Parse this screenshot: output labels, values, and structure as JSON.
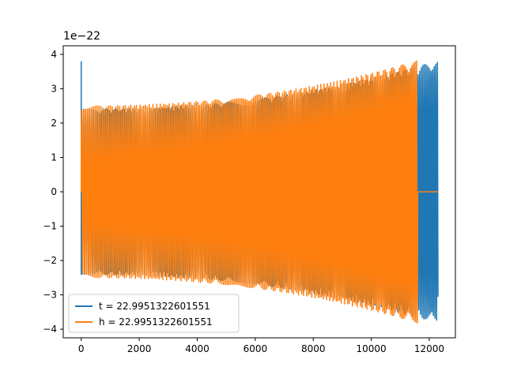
{
  "chart_data": {
    "type": "line",
    "title": "",
    "xlabel": "",
    "ylabel": "",
    "y_scale_label": "1e−22",
    "xlim": [
      -620,
      12900
    ],
    "ylim": [
      -4.25,
      4.25
    ],
    "x_ticks": [
      0,
      2000,
      4000,
      6000,
      8000,
      10000,
      12000
    ],
    "y_ticks": [
      -4,
      -3,
      -2,
      -1,
      0,
      1,
      2,
      3,
      4
    ],
    "x_tick_labels": [
      "0",
      "2000",
      "4000",
      "6000",
      "8000",
      "10000",
      "12000"
    ],
    "y_tick_labels": [
      "−4",
      "−3",
      "−2",
      "−1",
      "0",
      "1",
      "2",
      "3",
      "4"
    ],
    "grid": false,
    "legend_position": "lower-left",
    "series": [
      {
        "name": "t = 22.9951322601551",
        "color": "#1f77b4",
        "x_start": 0,
        "x_end": 12300,
        "initial_spike": 3.8,
        "amplitude_start": 2.4,
        "amplitude_end": 3.82,
        "approx_cycles": 180
      },
      {
        "name": "h = 22.9951322601551",
        "color": "#ff7f0e",
        "x_start": 0,
        "x_end": 11600,
        "amplitude_start": 2.5,
        "amplitude_end": 3.82,
        "approx_cycles": 175,
        "tail_x_start": 11600,
        "tail_x_end": 12300,
        "tail_value": 0
      }
    ]
  }
}
